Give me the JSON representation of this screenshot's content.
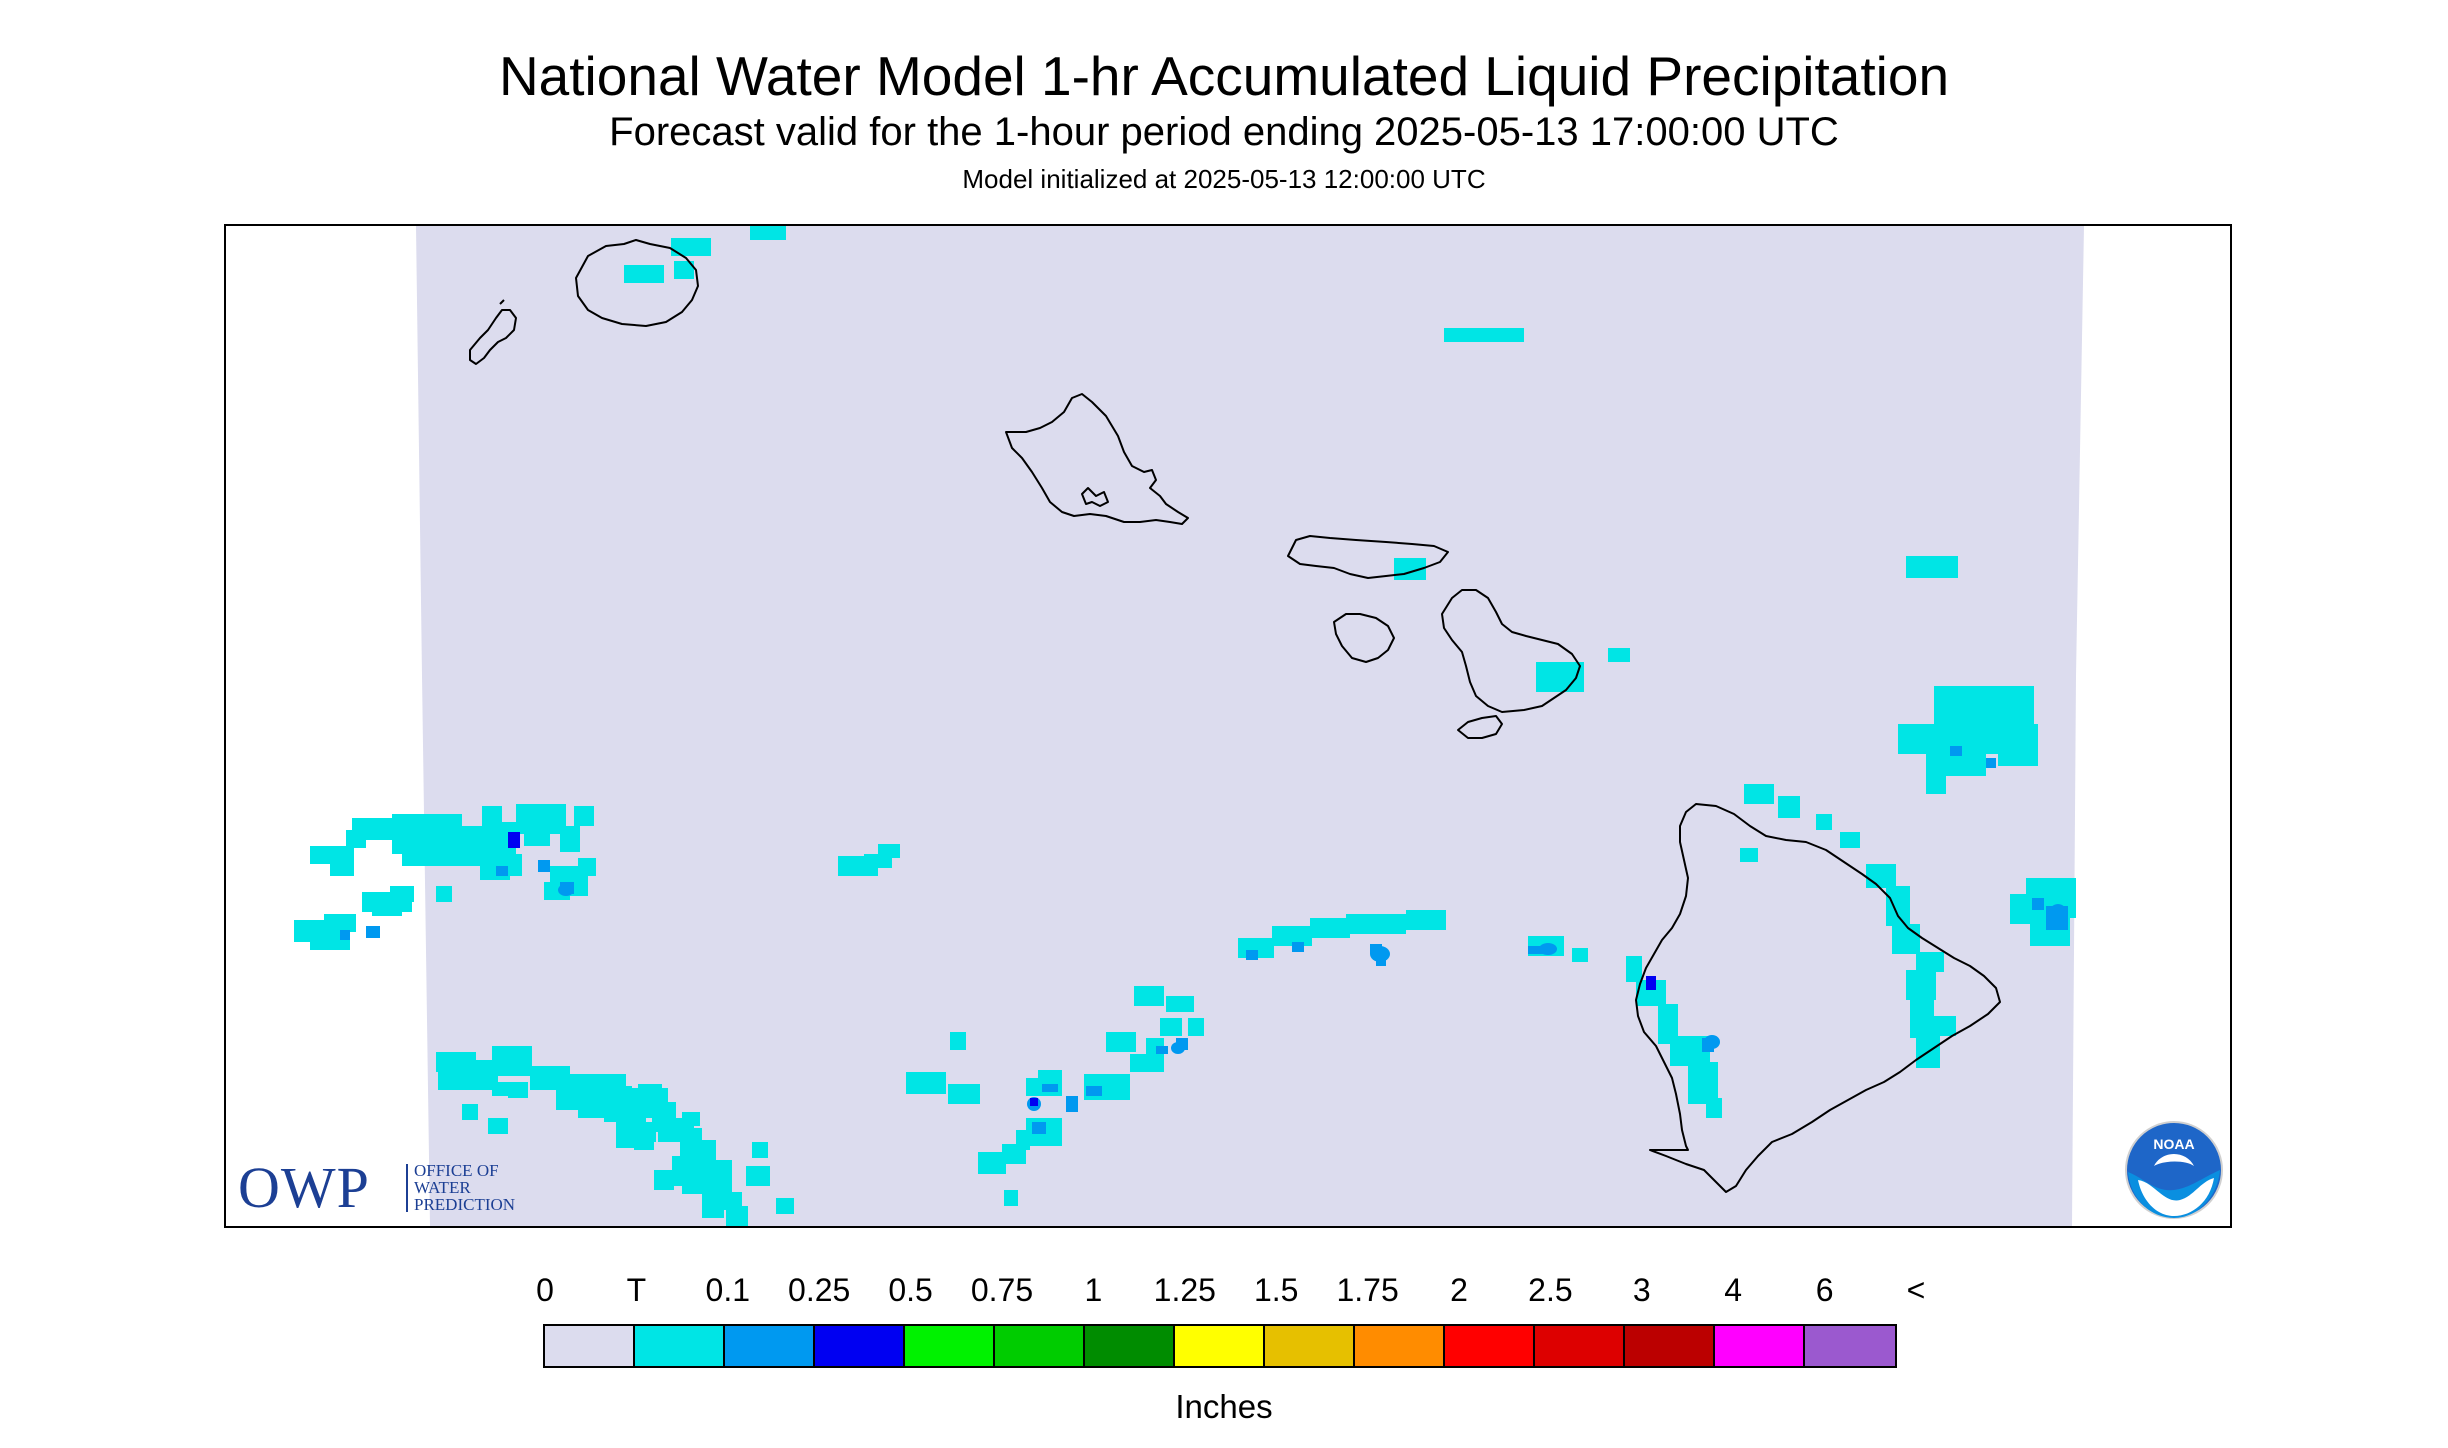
{
  "title": "National Water Model 1-hr Accumulated Liquid Precipitation",
  "subtitle": "Forecast valid for the 1-hour period ending 2025-05-13 17:00:00 UTC",
  "init_text": "Model initialized at 2025-05-13 12:00:00 UTC",
  "logo_owp": {
    "big": "OWP",
    "line1": "OFFICE OF",
    "line2": "WATER",
    "line3": "PREDICTION"
  },
  "logo_noaa": {
    "text": "NOAA"
  },
  "legend": {
    "labels": [
      "0",
      "T",
      "0.1",
      "0.25",
      "0.5",
      "0.75",
      "1",
      "1.25",
      "1.5",
      "1.75",
      "2",
      "2.5",
      "3",
      "4",
      "6",
      "<"
    ],
    "colors": [
      "#dcdcee",
      "#00e5e5",
      "#0099f0",
      "#0000f2",
      "#00f200",
      "#00cc00",
      "#008c00",
      "#ffff00",
      "#e6c000",
      "#ff8c00",
      "#ff0000",
      "#dd0000",
      "#bb0000",
      "#ff00ff",
      "#9b59cf"
    ],
    "units": "Inches"
  },
  "map_colors": {
    "background": "#dcdcee",
    "trace": "#00e5e5",
    "light": "#0099f0",
    "moderate": "#0000f2",
    "coastline": "#000000"
  }
}
